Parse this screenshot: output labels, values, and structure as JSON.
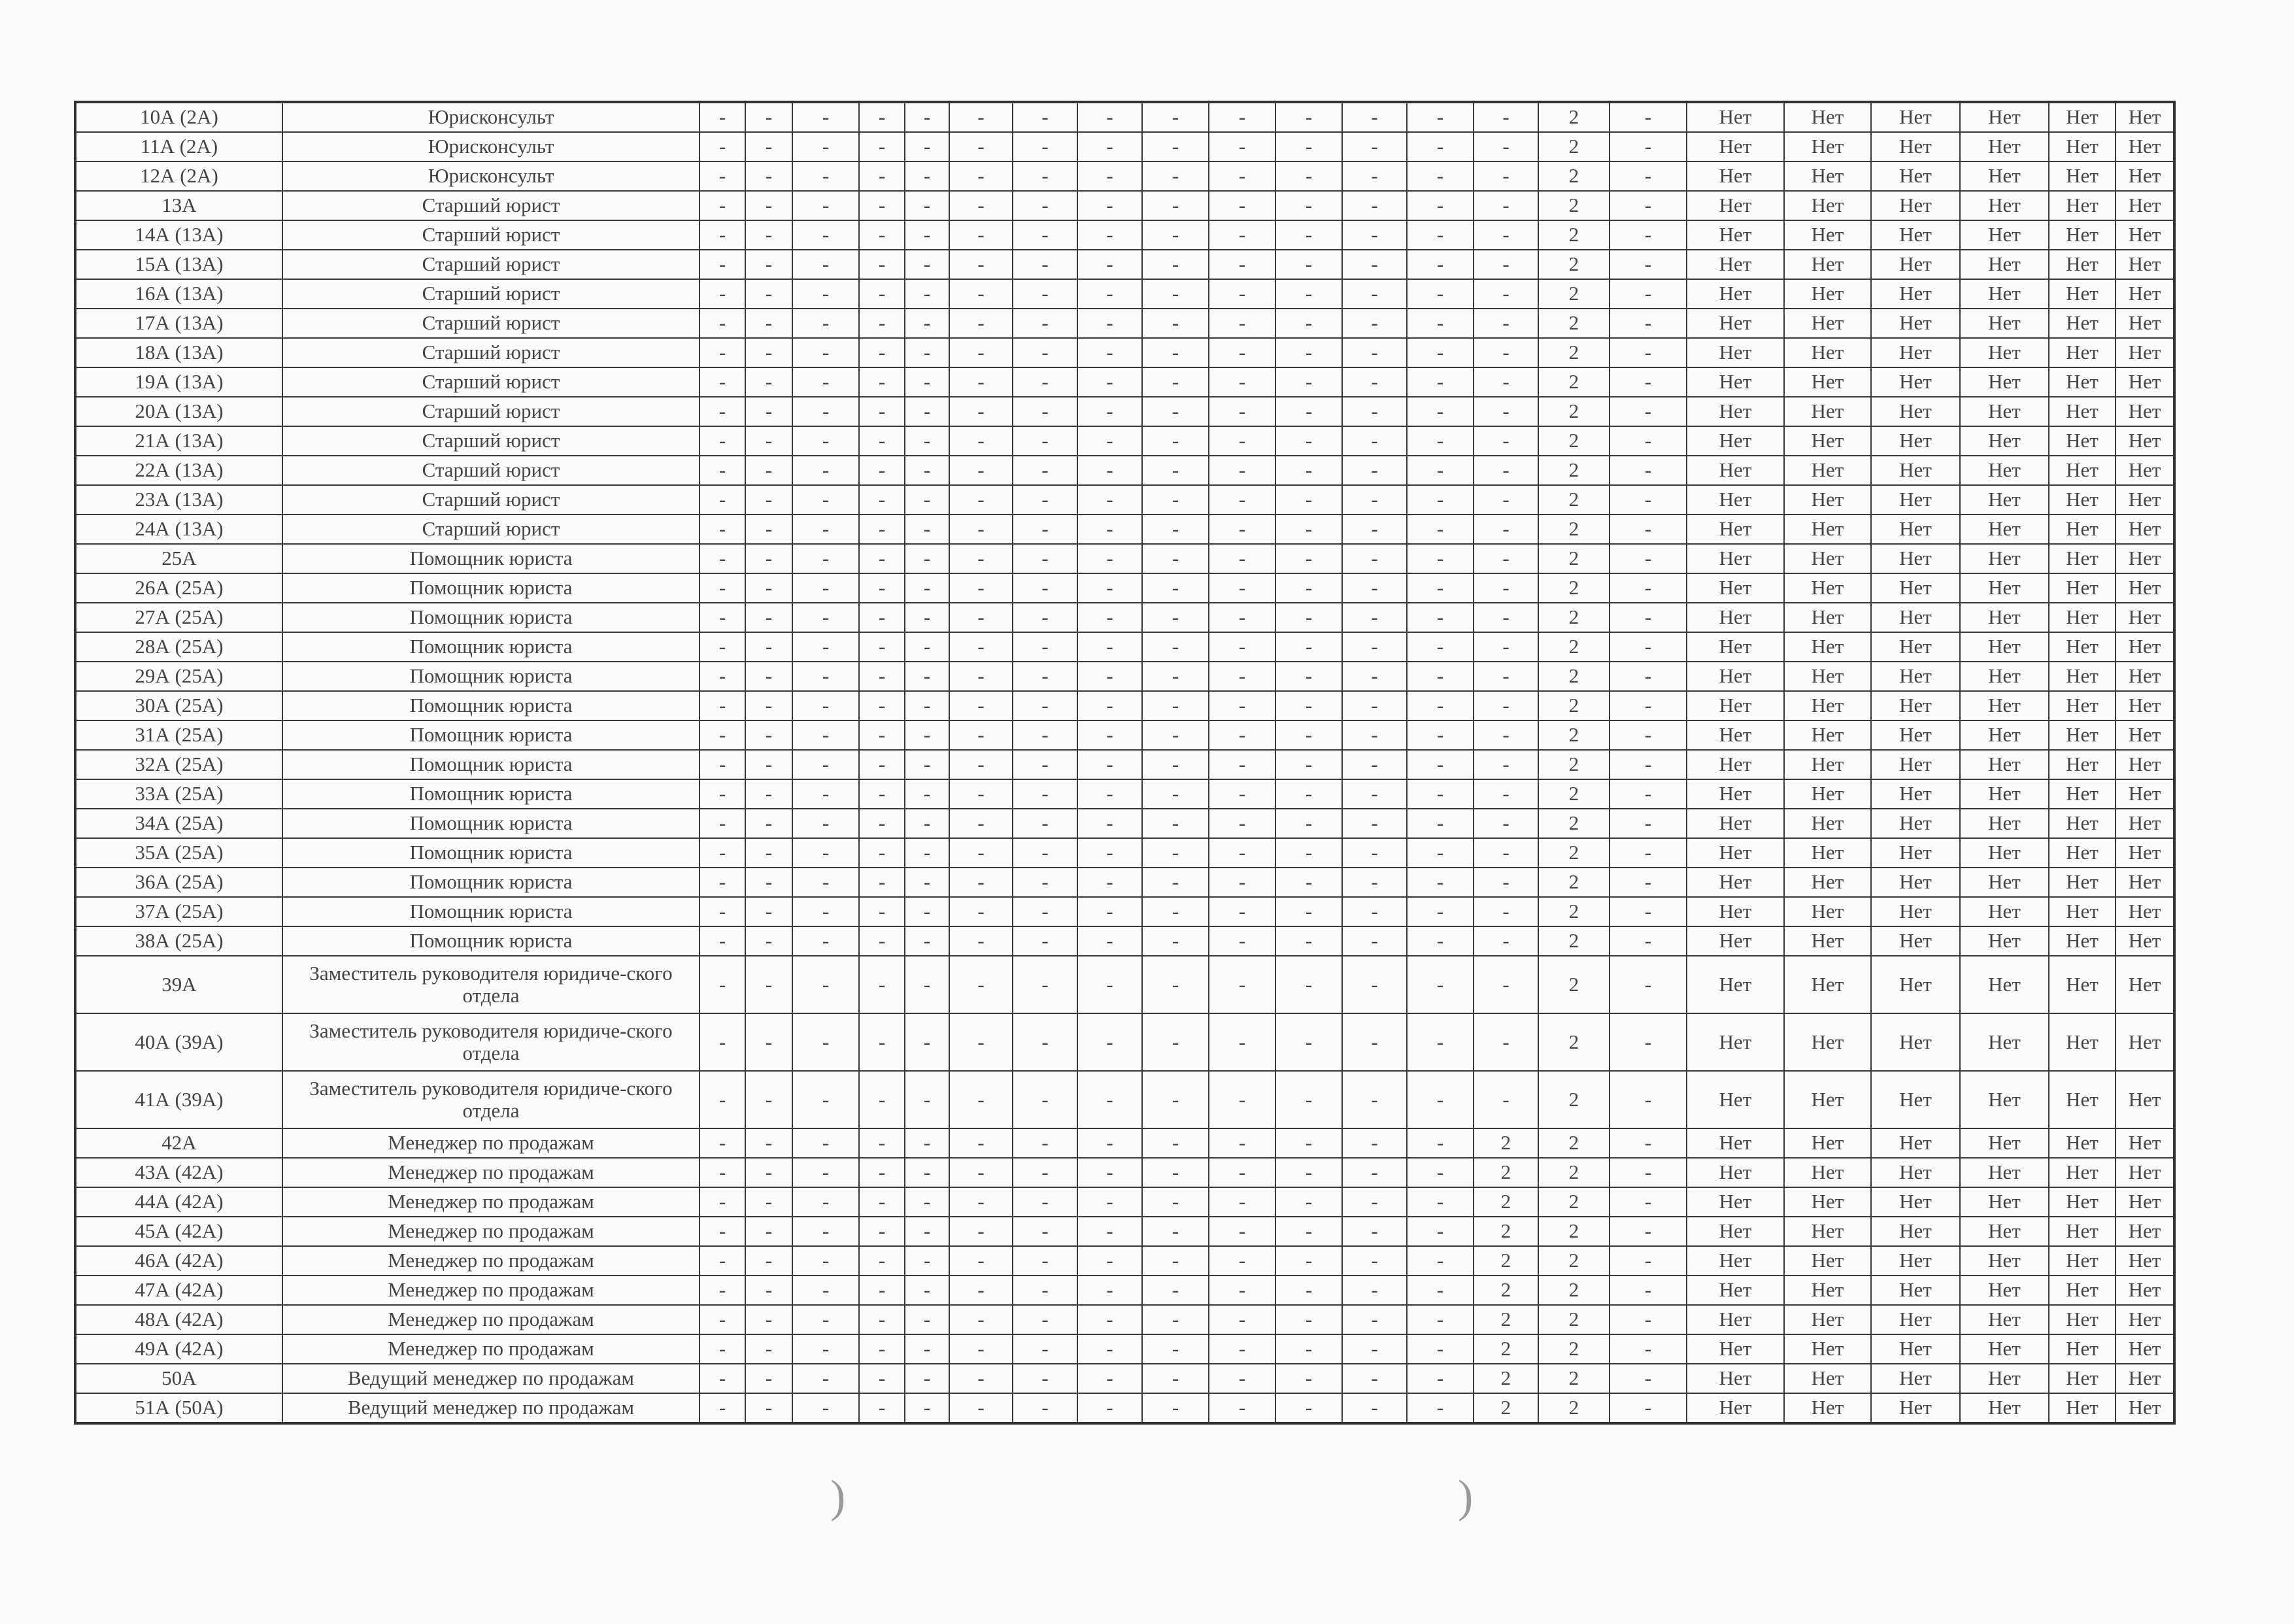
{
  "table": {
    "rows": [
      {
        "id": "10А (2А)",
        "title": "Юрисконсульт",
        "cells": [
          "-",
          "-",
          "-",
          "-",
          "-",
          "-",
          "-",
          "-",
          "-",
          "-",
          "-",
          "-",
          "-",
          "-",
          "2",
          "-",
          "Нет",
          "Нет",
          "Нет",
          "Нет",
          "Нет",
          "Нет"
        ]
      },
      {
        "id": "11А (2А)",
        "title": "Юрисконсульт",
        "cells": [
          "-",
          "-",
          "-",
          "-",
          "-",
          "-",
          "-",
          "-",
          "-",
          "-",
          "-",
          "-",
          "-",
          "-",
          "2",
          "-",
          "Нет",
          "Нет",
          "Нет",
          "Нет",
          "Нет",
          "Нет"
        ]
      },
      {
        "id": "12А (2А)",
        "title": "Юрисконсульт",
        "cells": [
          "-",
          "-",
          "-",
          "-",
          "-",
          "-",
          "-",
          "-",
          "-",
          "-",
          "-",
          "-",
          "-",
          "-",
          "2",
          "-",
          "Нет",
          "Нет",
          "Нет",
          "Нет",
          "Нет",
          "Нет"
        ]
      },
      {
        "id": "13А",
        "title": "Старший юрист",
        "cells": [
          "-",
          "-",
          "-",
          "-",
          "-",
          "-",
          "-",
          "-",
          "-",
          "-",
          "-",
          "-",
          "-",
          "-",
          "2",
          "-",
          "Нет",
          "Нет",
          "Нет",
          "Нет",
          "Нет",
          "Нет"
        ]
      },
      {
        "id": "14А (13А)",
        "title": "Старший юрист",
        "cells": [
          "-",
          "-",
          "-",
          "-",
          "-",
          "-",
          "-",
          "-",
          "-",
          "-",
          "-",
          "-",
          "-",
          "-",
          "2",
          "-",
          "Нет",
          "Нет",
          "Нет",
          "Нет",
          "Нет",
          "Нет"
        ]
      },
      {
        "id": "15А (13А)",
        "title": "Старший юрист",
        "cells": [
          "-",
          "-",
          "-",
          "-",
          "-",
          "-",
          "-",
          "-",
          "-",
          "-",
          "-",
          "-",
          "-",
          "-",
          "2",
          "-",
          "Нет",
          "Нет",
          "Нет",
          "Нет",
          "Нет",
          "Нет"
        ]
      },
      {
        "id": "16А (13А)",
        "title": "Старший юрист",
        "cells": [
          "-",
          "-",
          "-",
          "-",
          "-",
          "-",
          "-",
          "-",
          "-",
          "-",
          "-",
          "-",
          "-",
          "-",
          "2",
          "-",
          "Нет",
          "Нет",
          "Нет",
          "Нет",
          "Нет",
          "Нет"
        ]
      },
      {
        "id": "17А (13А)",
        "title": "Старший юрист",
        "cells": [
          "-",
          "-",
          "-",
          "-",
          "-",
          "-",
          "-",
          "-",
          "-",
          "-",
          "-",
          "-",
          "-",
          "-",
          "2",
          "-",
          "Нет",
          "Нет",
          "Нет",
          "Нет",
          "Нет",
          "Нет"
        ]
      },
      {
        "id": "18А (13А)",
        "title": "Старший юрист",
        "cells": [
          "-",
          "-",
          "-",
          "-",
          "-",
          "-",
          "-",
          "-",
          "-",
          "-",
          "-",
          "-",
          "-",
          "-",
          "2",
          "-",
          "Нет",
          "Нет",
          "Нет",
          "Нет",
          "Нет",
          "Нет"
        ]
      },
      {
        "id": "19А (13А)",
        "title": "Старший юрист",
        "cells": [
          "-",
          "-",
          "-",
          "-",
          "-",
          "-",
          "-",
          "-",
          "-",
          "-",
          "-",
          "-",
          "-",
          "-",
          "2",
          "-",
          "Нет",
          "Нет",
          "Нет",
          "Нет",
          "Нет",
          "Нет"
        ]
      },
      {
        "id": "20А (13А)",
        "title": "Старший юрист",
        "cells": [
          "-",
          "-",
          "-",
          "-",
          "-",
          "-",
          "-",
          "-",
          "-",
          "-",
          "-",
          "-",
          "-",
          "-",
          "2",
          "-",
          "Нет",
          "Нет",
          "Нет",
          "Нет",
          "Нет",
          "Нет"
        ]
      },
      {
        "id": "21А (13А)",
        "title": "Старший юрист",
        "cells": [
          "-",
          "-",
          "-",
          "-",
          "-",
          "-",
          "-",
          "-",
          "-",
          "-",
          "-",
          "-",
          "-",
          "-",
          "2",
          "-",
          "Нет",
          "Нет",
          "Нет",
          "Нет",
          "Нет",
          "Нет"
        ]
      },
      {
        "id": "22А (13А)",
        "title": "Старший юрист",
        "cells": [
          "-",
          "-",
          "-",
          "-",
          "-",
          "-",
          "-",
          "-",
          "-",
          "-",
          "-",
          "-",
          "-",
          "-",
          "2",
          "-",
          "Нет",
          "Нет",
          "Нет",
          "Нет",
          "Нет",
          "Нет"
        ]
      },
      {
        "id": "23А (13А)",
        "title": "Старший юрист",
        "cells": [
          "-",
          "-",
          "-",
          "-",
          "-",
          "-",
          "-",
          "-",
          "-",
          "-",
          "-",
          "-",
          "-",
          "-",
          "2",
          "-",
          "Нет",
          "Нет",
          "Нет",
          "Нет",
          "Нет",
          "Нет"
        ]
      },
      {
        "id": "24А (13А)",
        "title": "Старший юрист",
        "cells": [
          "-",
          "-",
          "-",
          "-",
          "-",
          "-",
          "-",
          "-",
          "-",
          "-",
          "-",
          "-",
          "-",
          "-",
          "2",
          "-",
          "Нет",
          "Нет",
          "Нет",
          "Нет",
          "Нет",
          "Нет"
        ]
      },
      {
        "id": "25А",
        "title": "Помощник юриста",
        "cells": [
          "-",
          "-",
          "-",
          "-",
          "-",
          "-",
          "-",
          "-",
          "-",
          "-",
          "-",
          "-",
          "-",
          "-",
          "2",
          "-",
          "Нет",
          "Нет",
          "Нет",
          "Нет",
          "Нет",
          "Нет"
        ]
      },
      {
        "id": "26А (25А)",
        "title": "Помощник юриста",
        "cells": [
          "-",
          "-",
          "-",
          "-",
          "-",
          "-",
          "-",
          "-",
          "-",
          "-",
          "-",
          "-",
          "-",
          "-",
          "2",
          "-",
          "Нет",
          "Нет",
          "Нет",
          "Нет",
          "Нет",
          "Нет"
        ]
      },
      {
        "id": "27А (25А)",
        "title": "Помощник юриста",
        "cells": [
          "-",
          "-",
          "-",
          "-",
          "-",
          "-",
          "-",
          "-",
          "-",
          "-",
          "-",
          "-",
          "-",
          "-",
          "2",
          "-",
          "Нет",
          "Нет",
          "Нет",
          "Нет",
          "Нет",
          "Нет"
        ]
      },
      {
        "id": "28А (25А)",
        "title": "Помощник юриста",
        "cells": [
          "-",
          "-",
          "-",
          "-",
          "-",
          "-",
          "-",
          "-",
          "-",
          "-",
          "-",
          "-",
          "-",
          "-",
          "2",
          "-",
          "Нет",
          "Нет",
          "Нет",
          "Нет",
          "Нет",
          "Нет"
        ]
      },
      {
        "id": "29А (25А)",
        "title": "Помощник юриста",
        "cells": [
          "-",
          "-",
          "-",
          "-",
          "-",
          "-",
          "-",
          "-",
          "-",
          "-",
          "-",
          "-",
          "-",
          "-",
          "2",
          "-",
          "Нет",
          "Нет",
          "Нет",
          "Нет",
          "Нет",
          "Нет"
        ]
      },
      {
        "id": "30А (25А)",
        "title": "Помощник юриста",
        "cells": [
          "-",
          "-",
          "-",
          "-",
          "-",
          "-",
          "-",
          "-",
          "-",
          "-",
          "-",
          "-",
          "-",
          "-",
          "2",
          "-",
          "Нет",
          "Нет",
          "Нет",
          "Нет",
          "Нет",
          "Нет"
        ]
      },
      {
        "id": "31А (25А)",
        "title": "Помощник юриста",
        "cells": [
          "-",
          "-",
          "-",
          "-",
          "-",
          "-",
          "-",
          "-",
          "-",
          "-",
          "-",
          "-",
          "-",
          "-",
          "2",
          "-",
          "Нет",
          "Нет",
          "Нет",
          "Нет",
          "Нет",
          "Нет"
        ]
      },
      {
        "id": "32А (25А)",
        "title": "Помощник юриста",
        "cells": [
          "-",
          "-",
          "-",
          "-",
          "-",
          "-",
          "-",
          "-",
          "-",
          "-",
          "-",
          "-",
          "-",
          "-",
          "2",
          "-",
          "Нет",
          "Нет",
          "Нет",
          "Нет",
          "Нет",
          "Нет"
        ]
      },
      {
        "id": "33А (25А)",
        "title": "Помощник юриста",
        "cells": [
          "-",
          "-",
          "-",
          "-",
          "-",
          "-",
          "-",
          "-",
          "-",
          "-",
          "-",
          "-",
          "-",
          "-",
          "2",
          "-",
          "Нет",
          "Нет",
          "Нет",
          "Нет",
          "Нет",
          "Нет"
        ]
      },
      {
        "id": "34А (25А)",
        "title": "Помощник юриста",
        "cells": [
          "-",
          "-",
          "-",
          "-",
          "-",
          "-",
          "-",
          "-",
          "-",
          "-",
          "-",
          "-",
          "-",
          "-",
          "2",
          "-",
          "Нет",
          "Нет",
          "Нет",
          "Нет",
          "Нет",
          "Нет"
        ]
      },
      {
        "id": "35А (25А)",
        "title": "Помощник юриста",
        "cells": [
          "-",
          "-",
          "-",
          "-",
          "-",
          "-",
          "-",
          "-",
          "-",
          "-",
          "-",
          "-",
          "-",
          "-",
          "2",
          "-",
          "Нет",
          "Нет",
          "Нет",
          "Нет",
          "Нет",
          "Нет"
        ]
      },
      {
        "id": "36А (25А)",
        "title": "Помощник юриста",
        "cells": [
          "-",
          "-",
          "-",
          "-",
          "-",
          "-",
          "-",
          "-",
          "-",
          "-",
          "-",
          "-",
          "-",
          "-",
          "2",
          "-",
          "Нет",
          "Нет",
          "Нет",
          "Нет",
          "Нет",
          "Нет"
        ]
      },
      {
        "id": "37А (25А)",
        "title": "Помощник юриста",
        "cells": [
          "-",
          "-",
          "-",
          "-",
          "-",
          "-",
          "-",
          "-",
          "-",
          "-",
          "-",
          "-",
          "-",
          "-",
          "2",
          "-",
          "Нет",
          "Нет",
          "Нет",
          "Нет",
          "Нет",
          "Нет"
        ]
      },
      {
        "id": "38А (25А)",
        "title": "Помощник юриста",
        "cells": [
          "-",
          "-",
          "-",
          "-",
          "-",
          "-",
          "-",
          "-",
          "-",
          "-",
          "-",
          "-",
          "-",
          "-",
          "2",
          "-",
          "Нет",
          "Нет",
          "Нет",
          "Нет",
          "Нет",
          "Нет"
        ]
      },
      {
        "id": "39А",
        "title": "Заместитель руководителя юридиче-ского отдела",
        "tall": true,
        "cells": [
          "-",
          "-",
          "-",
          "-",
          "-",
          "-",
          "-",
          "-",
          "-",
          "-",
          "-",
          "-",
          "-",
          "-",
          "2",
          "-",
          "Нет",
          "Нет",
          "Нет",
          "Нет",
          "Нет",
          "Нет"
        ]
      },
      {
        "id": "40А (39А)",
        "title": "Заместитель руководителя юридиче-ского отдела",
        "tall": true,
        "cells": [
          "-",
          "-",
          "-",
          "-",
          "-",
          "-",
          "-",
          "-",
          "-",
          "-",
          "-",
          "-",
          "-",
          "-",
          "2",
          "-",
          "Нет",
          "Нет",
          "Нет",
          "Нет",
          "Нет",
          "Нет"
        ]
      },
      {
        "id": "41А (39А)",
        "title": "Заместитель руководителя юридиче-ского отдела",
        "tall": true,
        "cells": [
          "-",
          "-",
          "-",
          "-",
          "-",
          "-",
          "-",
          "-",
          "-",
          "-",
          "-",
          "-",
          "-",
          "-",
          "2",
          "-",
          "Нет",
          "Нет",
          "Нет",
          "Нет",
          "Нет",
          "Нет"
        ]
      },
      {
        "id": "42А",
        "title": "Менеджер по продажам",
        "cells": [
          "-",
          "-",
          "-",
          "-",
          "-",
          "-",
          "-",
          "-",
          "-",
          "-",
          "-",
          "-",
          "-",
          "2",
          "2",
          "-",
          "Нет",
          "Нет",
          "Нет",
          "Нет",
          "Нет",
          "Нет"
        ]
      },
      {
        "id": "43А (42А)",
        "title": "Менеджер по продажам",
        "cells": [
          "-",
          "-",
          "-",
          "-",
          "-",
          "-",
          "-",
          "-",
          "-",
          "-",
          "-",
          "-",
          "-",
          "2",
          "2",
          "-",
          "Нет",
          "Нет",
          "Нет",
          "Нет",
          "Нет",
          "Нет"
        ]
      },
      {
        "id": "44А (42А)",
        "title": "Менеджер по продажам",
        "cells": [
          "-",
          "-",
          "-",
          "-",
          "-",
          "-",
          "-",
          "-",
          "-",
          "-",
          "-",
          "-",
          "-",
          "2",
          "2",
          "-",
          "Нет",
          "Нет",
          "Нет",
          "Нет",
          "Нет",
          "Нет"
        ]
      },
      {
        "id": "45А (42А)",
        "title": "Менеджер по продажам",
        "cells": [
          "-",
          "-",
          "-",
          "-",
          "-",
          "-",
          "-",
          "-",
          "-",
          "-",
          "-",
          "-",
          "-",
          "2",
          "2",
          "-",
          "Нет",
          "Нет",
          "Нет",
          "Нет",
          "Нет",
          "Нет"
        ]
      },
      {
        "id": "46А (42А)",
        "title": "Менеджер по продажам",
        "cells": [
          "-",
          "-",
          "-",
          "-",
          "-",
          "-",
          "-",
          "-",
          "-",
          "-",
          "-",
          "-",
          "-",
          "2",
          "2",
          "-",
          "Нет",
          "Нет",
          "Нет",
          "Нет",
          "Нет",
          "Нет"
        ]
      },
      {
        "id": "47А (42А)",
        "title": "Менеджер по продажам",
        "cells": [
          "-",
          "-",
          "-",
          "-",
          "-",
          "-",
          "-",
          "-",
          "-",
          "-",
          "-",
          "-",
          "-",
          "2",
          "2",
          "-",
          "Нет",
          "Нет",
          "Нет",
          "Нет",
          "Нет",
          "Нет"
        ]
      },
      {
        "id": "48А (42А)",
        "title": "Менеджер по продажам",
        "cells": [
          "-",
          "-",
          "-",
          "-",
          "-",
          "-",
          "-",
          "-",
          "-",
          "-",
          "-",
          "-",
          "-",
          "2",
          "2",
          "-",
          "Нет",
          "Нет",
          "Нет",
          "Нет",
          "Нет",
          "Нет"
        ]
      },
      {
        "id": "49А (42А)",
        "title": "Менеджер по продажам",
        "cells": [
          "-",
          "-",
          "-",
          "-",
          "-",
          "-",
          "-",
          "-",
          "-",
          "-",
          "-",
          "-",
          "-",
          "2",
          "2",
          "-",
          "Нет",
          "Нет",
          "Нет",
          "Нет",
          "Нет",
          "Нет"
        ]
      },
      {
        "id": "50А",
        "title": "Ведущий менеджер по продажам",
        "cells": [
          "-",
          "-",
          "-",
          "-",
          "-",
          "-",
          "-",
          "-",
          "-",
          "-",
          "-",
          "-",
          "-",
          "2",
          "2",
          "-",
          "Нет",
          "Нет",
          "Нет",
          "Нет",
          "Нет",
          "Нет"
        ]
      },
      {
        "id": "51А (50А)",
        "title": "Ведущий менеджер по продажам",
        "cells": [
          "-",
          "-",
          "-",
          "-",
          "-",
          "-",
          "-",
          "-",
          "-",
          "-",
          "-",
          "-",
          "-",
          "2",
          "2",
          "-",
          "Нет",
          "Нет",
          "Нет",
          "Нет",
          "Нет",
          "Нет"
        ]
      }
    ]
  }
}
